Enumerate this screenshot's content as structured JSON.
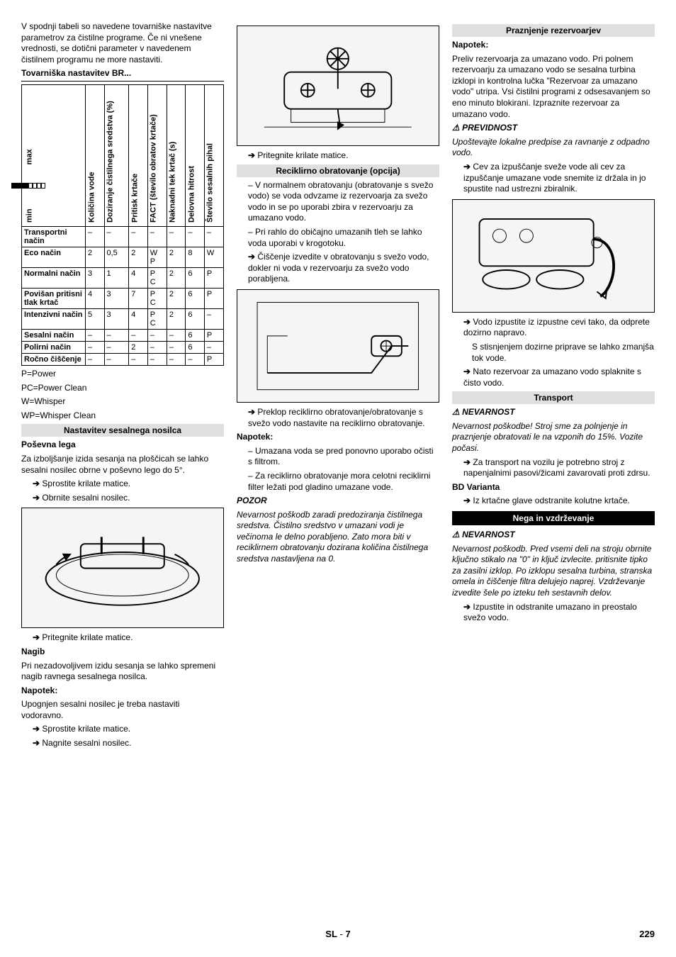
{
  "col1": {
    "intro": "V spodnji tabeli so navedene tovarniške nastavitve parametrov za čistilne programe. Če ni vnešene vrednosti, se dotični parameter v navedenem čistilnem programu ne more nastaviti.",
    "table_title": "Tovarniška nastavitev BR...",
    "headers": {
      "h0_min": "min",
      "h0_max": "max",
      "h1": "Količina vode",
      "h2": "Doziranje čistilnega sredstva (%)",
      "h3": "Pritisk krtače",
      "h4": "FACT (število obratov krtače)",
      "h5": "Naknadni tek krtač (s)",
      "h6": "Delovna hitrost",
      "h7": "Število sesalnih pihal"
    },
    "rows": [
      {
        "label": "Transportni način",
        "c1": "–",
        "c2": "–",
        "c3": "–",
        "c4": "–",
        "c5": "–",
        "c6": "–",
        "c7": "–"
      },
      {
        "label": "Eco način",
        "c1": "2",
        "c2": "0,5",
        "c3": "2",
        "c4": "W\nP",
        "c5": "2",
        "c6": "8",
        "c7": "W"
      },
      {
        "label": "Normalni način",
        "c1": "3",
        "c2": "1",
        "c3": "4",
        "c4": "P\nC",
        "c5": "2",
        "c6": "6",
        "c7": "P"
      },
      {
        "label": "Povišan pritisni tlak krtač",
        "c1": "4",
        "c2": "3",
        "c3": "7",
        "c4": "P\nC",
        "c5": "2",
        "c6": "6",
        "c7": "P"
      },
      {
        "label": "Intenzivni način",
        "c1": "5",
        "c2": "3",
        "c3": "4",
        "c4": "P\nC",
        "c5": "2",
        "c6": "6",
        "c7": "–"
      },
      {
        "label": "Sesalni način",
        "c1": "–",
        "c2": "–",
        "c3": "–",
        "c4": "–",
        "c5": "–",
        "c6": "6",
        "c7": "P"
      },
      {
        "label": "Polirni način",
        "c1": "–",
        "c2": "–",
        "c3": "2",
        "c4": "–",
        "c5": "–",
        "c6": "6",
        "c7": "–"
      },
      {
        "label": "Ročno čiščenje",
        "c1": "–",
        "c2": "–",
        "c3": "–",
        "c4": "–",
        "c5": "–",
        "c6": "–",
        "c7": "P"
      }
    ],
    "legend1": "P=Power",
    "legend2": "PC=Power Clean",
    "legend3": "W=Whisper",
    "legend4": "WP=Whisper Clean",
    "sec1_title": "Nastavitev sesalnega nosilca",
    "sub1": "Poševna lega",
    "p1": "Za izboljšanje izida sesanja na ploščicah se lahko sesalni nosilec obrne v poševno lego do 5°.",
    "b1": "Sprostite krilate matice.",
    "b2": "Obrnite sesalni nosilec.",
    "b3": "Pritegnite krilate matice.",
    "sub2": "Nagib",
    "p2": "Pri nezadovoljivem izidu sesanja se lahko spremeni nagib ravnega sesalnega nosilca.",
    "note": "Napotek:",
    "p3": "Upognjen sesalni nosilec je treba nastaviti vodoravno.",
    "b4": "Sprostite krilate matice.",
    "b5": "Nagnite sesalni nosilec."
  },
  "col2": {
    "b1": "Pritegnite krilate matice.",
    "sec_title": "Reciklirno obratovanje (opcija)",
    "d1": "V normalnem obratovanju (obratovanje s svežo vodo) se voda odvzame iz rezervoarja za svežo vodo in se po uporabi zbira v rezervoarju za umazano vodo.",
    "d2": "Pri rahlo do običajno umazanih tleh se lahko voda uporabi v krogotoku.",
    "b2": "Čiščenje izvedite v obratovanju s svežo vodo, dokler ni voda v rezervoarju za svežo vodo porabljena.",
    "b3": "Preklop reciklirno obratovanje/obratovanje s svežo vodo nastavite na reciklirno obratovanje.",
    "note": "Napotek:",
    "d3": "Umazana voda se pred ponovno uporabo očisti s filtrom.",
    "d4": "Za reciklirno obratovanje mora celotni reciklirni filter ležati pod gladino umazane vode.",
    "pozor": "POZOR",
    "pozor_text": "Nevarnost poškodb zaradi predoziranja čistilnega sredstva. Čistilno sredstvo v umazani vodi je večinoma le delno porabljeno. Zato mora biti v reciklirnem obratovanju dozirana količina čistilnega sredstva nastavljena na 0."
  },
  "col3": {
    "sec1_title": "Praznjenje rezervoarjev",
    "note1": "Napotek:",
    "p1": "Preliv rezervoarja za umazano vodo. Pri polnem rezervoarju za umazano vodo se sesalna turbina izklopi in kontrolna lučka \"Rezervoar za umazano vodo\" utripa. Vsi čistilni programi z odsesavanjem so eno minuto blokirani. Izpraznite rezervoar za umazano vodo.",
    "prev": "PREVIDNOST",
    "prev_text": "Upoštevajte lokalne predpise za ravnanje z odpadno vodo.",
    "b1": "Cev za izpuščanje sveže vode ali cev za izpuščanje umazane vode snemite iz držala in jo spustite nad ustrezni zbiralnik.",
    "b2": "Vodo izpustite iz izpustne cevi tako, da odprete dozirno napravo.",
    "b2b": "S stisnjenjem dozirne priprave se lahko zmanjša tok vode.",
    "b3": "Nato rezervoar za umazano vodo splaknite s čisto vodo.",
    "sec2_title": "Transport",
    "danger": "NEVARNOST",
    "danger_text": "Nevarnost poškodbe! Stroj sme za polnjenje in praznjenje obratovati le na vzponih do 15%. Vozite počasi.",
    "b4": "Za transport na vozilu je potrebno stroj z napenjalnimi pasovi/žicami zavarovati proti zdrsu.",
    "bd": "BD Varianta",
    "b5": "Iz krtačne glave odstranite kolutne krtače.",
    "sec3_title": "Nega in vzdrževanje",
    "danger2": "NEVARNOST",
    "danger2_text": "Nevarnost poškodb. Pred vsemi deli na stroju obrnite ključno stikalo na \"0\" in ključ izvlecite. pritisnite tipko za zasilni izklop. Po izklopu sesalna turbina, stranska omela in čiščenje filtra delujejo naprej. Vzdrževanje izvedite šele po izteku teh sestavnih delov.",
    "b6": "Izpustite in odstranite umazano in preostalo svežo vodo."
  },
  "footer": {
    "lang": "SL",
    "dash": " - ",
    "sub": "7",
    "page": "229"
  }
}
